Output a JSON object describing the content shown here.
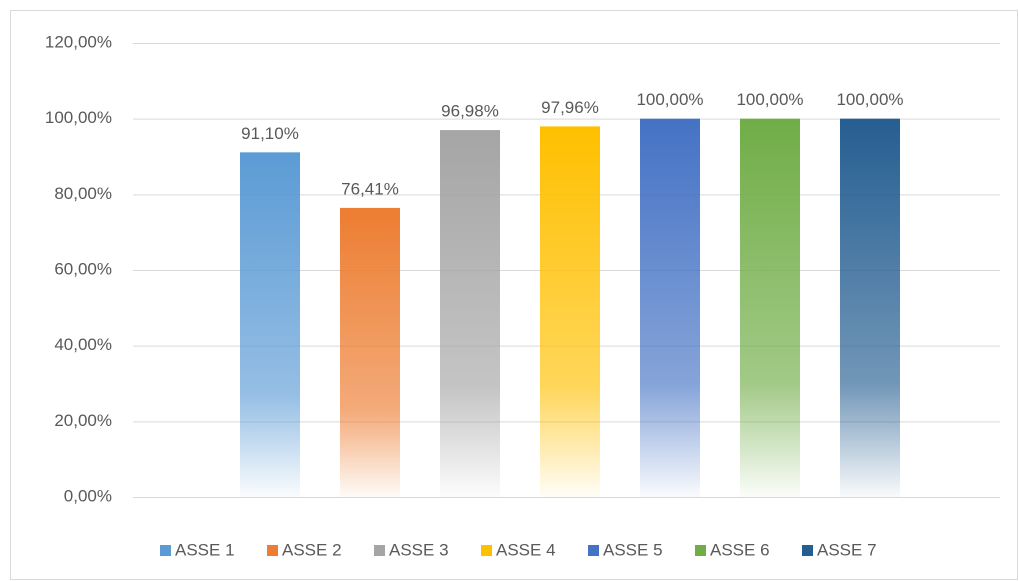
{
  "chart_data": {
    "type": "bar",
    "categories": [
      "ASSE 1",
      "ASSE 2",
      "ASSE 3",
      "ASSE 4",
      "ASSE 5",
      "ASSE 6",
      "ASSE 7"
    ],
    "values": [
      91.1,
      76.41,
      96.98,
      97.96,
      100,
      100,
      100
    ],
    "value_labels": [
      "91,10%",
      "76,41%",
      "96,98%",
      "97,96%",
      "100,00%",
      "100,00%",
      "100,00%"
    ],
    "colors": [
      "#5b9bd5",
      "#ed7d31",
      "#a5a5a5",
      "#ffc000",
      "#4472c4",
      "#70ad47",
      "#255e91"
    ],
    "ylim": [
      0,
      120
    ],
    "yticks": [
      {
        "value": 0,
        "label": "0,00%"
      },
      {
        "value": 20,
        "label": "20,00%"
      },
      {
        "value": 40,
        "label": "40,00%"
      },
      {
        "value": 60,
        "label": "60,00%"
      },
      {
        "value": 80,
        "label": "80,00%"
      },
      {
        "value": 100,
        "label": "100,00%"
      },
      {
        "value": 120,
        "label": "120,00%"
      }
    ],
    "grid": true,
    "legend": "bottom"
  }
}
